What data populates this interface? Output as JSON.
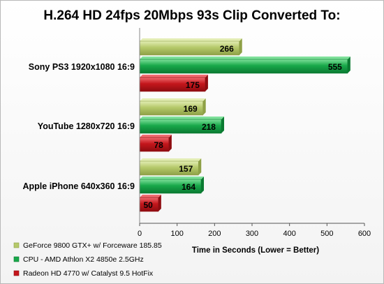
{
  "chart_data": {
    "type": "bar",
    "orientation": "horizontal",
    "title": "H.264 HD 24fps 20Mbps 93s Clip Converted To:",
    "xlabel": "Time in Seconds (Lower = Better)",
    "ylabel": "",
    "xlim": [
      0,
      600
    ],
    "ticks": [
      0,
      100,
      200,
      300,
      400,
      500,
      600
    ],
    "tick_labels": [
      "0",
      "100",
      "200",
      "300",
      "400",
      "500",
      "600"
    ],
    "categories": [
      "Sony PS3 1920x1080 16:9",
      "YouTube 1280x720 16:9",
      "Apple iPhone 640x360 16:9"
    ],
    "series": [
      {
        "name": "GeForce 9800 GTX+ w/ Forceware 185.85",
        "color": "#b5c96a",
        "values": [
          266,
          169,
          157
        ],
        "labels": [
          "266",
          "169",
          "157"
        ]
      },
      {
        "name": "CPU - AMD Athlon X2 4850e 2.5GHz",
        "color": "#18a84a",
        "values": [
          555,
          218,
          164
        ],
        "labels": [
          "555",
          "218",
          "164"
        ]
      },
      {
        "name": "Radeon HD 4770 w/ Catalyst 9.5 HotFix",
        "color": "#c4161c",
        "values": [
          175,
          78,
          50
        ],
        "labels": [
          "175",
          "78",
          "50"
        ]
      }
    ],
    "grid": false,
    "legend_position": "bottom-left"
  }
}
